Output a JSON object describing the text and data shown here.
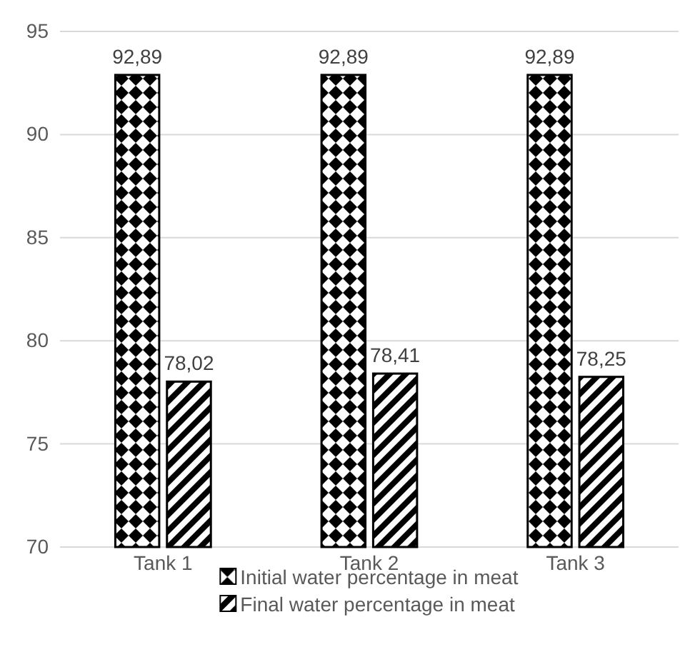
{
  "chart_data": {
    "type": "bar",
    "categories": [
      "Tank 1",
      "Tank 2",
      "Tank 3"
    ],
    "series": [
      {
        "name": "Initial water percentage in meat",
        "color": "#000000",
        "values": [
          92.89,
          92.89,
          92.89
        ],
        "value_labels": [
          "92,89",
          "92,89",
          "92,89"
        ]
      },
      {
        "name": "Final water percentage in meat",
        "color": "#000000",
        "values": [
          78.02,
          78.41,
          78.25
        ],
        "value_labels": [
          "78,02",
          "78,41",
          "78,25"
        ]
      }
    ],
    "ylim": [
      70,
      95
    ],
    "yticks": [
      70,
      75,
      80,
      85,
      90,
      95
    ],
    "grid": "y",
    "legend": "bottom"
  }
}
